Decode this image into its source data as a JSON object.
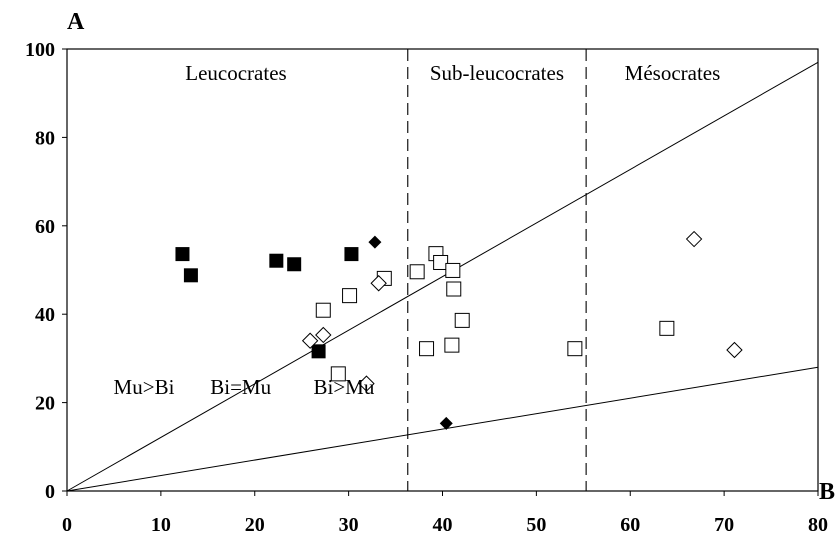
{
  "chart_data": {
    "type": "scatter",
    "xlabel": "B",
    "ylabel": "A",
    "xlim": [
      0,
      80
    ],
    "ylim": [
      0,
      100
    ],
    "xticks": [
      0,
      10,
      20,
      30,
      40,
      50,
      60,
      70,
      80
    ],
    "yticks": [
      0,
      20,
      40,
      60,
      80,
      100
    ],
    "grid": false,
    "vertical_boundaries": [
      36.3,
      55.3
    ],
    "lines": [
      {
        "x": [
          0,
          80
        ],
        "y": [
          0,
          97
        ]
      },
      {
        "x": [
          0,
          80
        ],
        "y": [
          0,
          28
        ]
      }
    ],
    "region_labels": [
      {
        "text": "Leucocrates",
        "x": 18,
        "y": 93
      },
      {
        "text": "Sub-leucocrates",
        "x": 45.8,
        "y": 93
      },
      {
        "text": "Mésocrates",
        "x": 64.5,
        "y": 93
      }
    ],
    "annotations": [
      {
        "text": "Mu>Bi",
        "x": 8.2,
        "y": 22
      },
      {
        "text": "Bi=Mu",
        "x": 18.5,
        "y": 22
      },
      {
        "text": "Bi>Mu",
        "x": 29.5,
        "y": 22
      }
    ],
    "series": [
      {
        "marker": "filled-square",
        "color": "#000000",
        "points": [
          [
            12.3,
            53.6
          ],
          [
            13.2,
            48.8
          ],
          [
            22.3,
            52.1
          ],
          [
            24.2,
            51.3
          ],
          [
            30.3,
            53.6
          ],
          [
            26.8,
            31.6
          ]
        ]
      },
      {
        "marker": "filled-diamond",
        "color": "#000000",
        "points": [
          [
            32.8,
            56.3
          ],
          [
            40.4,
            15.3
          ]
        ]
      },
      {
        "marker": "open-square",
        "color": "#000000",
        "points": [
          [
            33.8,
            48.1
          ],
          [
            27.3,
            40.9
          ],
          [
            30.1,
            44.2
          ],
          [
            28.9,
            26.5
          ],
          [
            37.3,
            49.6
          ],
          [
            39.3,
            53.7
          ],
          [
            39.8,
            51.7
          ],
          [
            41.1,
            49.9
          ],
          [
            41.2,
            45.7
          ],
          [
            42.1,
            38.6
          ],
          [
            38.3,
            32.2
          ],
          [
            41.0,
            33.0
          ],
          [
            54.1,
            32.2
          ],
          [
            63.9,
            36.8
          ]
        ]
      },
      {
        "marker": "open-diamond",
        "color": "#000000",
        "points": [
          [
            33.2,
            47.0
          ],
          [
            25.9,
            34.0
          ],
          [
            27.3,
            35.3
          ],
          [
            31.9,
            24.3
          ],
          [
            66.8,
            57.0
          ],
          [
            71.1,
            31.9
          ]
        ]
      }
    ]
  }
}
